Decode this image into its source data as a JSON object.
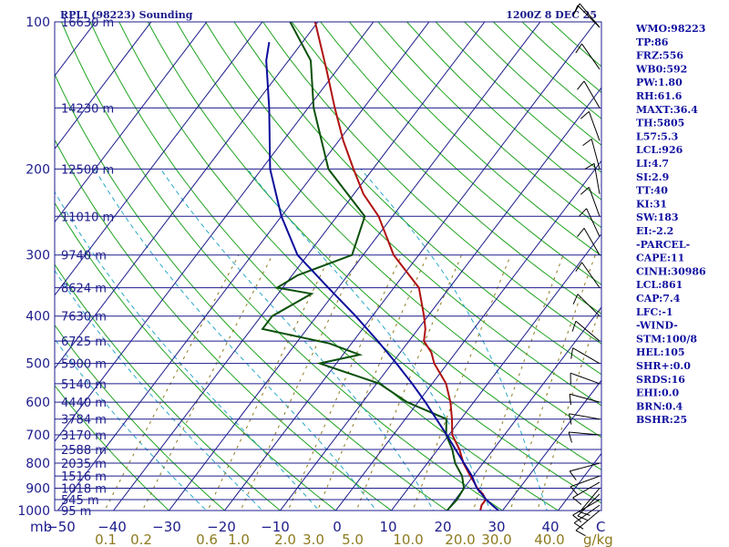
{
  "chart_data": {
    "type": "skew-t sounding",
    "title": "RPLI (98223) Sounding",
    "time_label": "1200Z  8 DEC 25",
    "pressure_axis_label": "mb",
    "pressure_ticks": [
      100,
      200,
      300,
      400,
      500,
      600,
      700,
      800,
      900,
      1000
    ],
    "pressure_range": [
      100,
      1000
    ],
    "height_labels": [
      {
        "p": 100,
        "label": "16630 m"
      },
      {
        "p": 150,
        "label": "14230 m"
      },
      {
        "p": 200,
        "label": "12500 m"
      },
      {
        "p": 250,
        "label": "11010 m"
      },
      {
        "p": 300,
        "label": "9740 m"
      },
      {
        "p": 350,
        "label": "8624 m"
      },
      {
        "p": 400,
        "label": "7630 m"
      },
      {
        "p": 450,
        "label": "6725 m"
      },
      {
        "p": 500,
        "label": "5900 m"
      },
      {
        "p": 550,
        "label": "5140 m"
      },
      {
        "p": 600,
        "label": "4440 m"
      },
      {
        "p": 650,
        "label": "3784 m"
      },
      {
        "p": 700,
        "label": "3170 m"
      },
      {
        "p": 750,
        "label": "2588 m"
      },
      {
        "p": 800,
        "label": "2035 m"
      },
      {
        "p": 850,
        "label": "1516 m"
      },
      {
        "p": 900,
        "label": "1018 m"
      },
      {
        "p": 950,
        "label": "545 m"
      },
      {
        "p": 1000,
        "label": "95 m"
      }
    ],
    "temperature_axis_label": "C",
    "temperature_ticks": [
      "−50",
      "−40",
      "−30",
      "−20",
      "−10",
      "0",
      "10",
      "20",
      "30",
      "40"
    ],
    "mixing_ratio_axis_label": "g/kg",
    "mixing_ratio_ticks": [
      "0.1",
      "0.2",
      "0.6",
      "1.0",
      "2.0",
      "3.0",
      "5.0",
      "10.0",
      "20.0",
      "30.0",
      "40.0"
    ],
    "series": [
      {
        "name": "temperature",
        "color": "#b01010",
        "points": [
          [
            1000,
            26
          ],
          [
            975,
            25.5
          ],
          [
            950,
            25.5
          ],
          [
            925,
            24.2
          ],
          [
            900,
            22.4
          ],
          [
            875,
            21
          ],
          [
            850,
            19.5
          ],
          [
            800,
            16.5
          ],
          [
            750,
            13.9
          ],
          [
            700,
            10.6
          ],
          [
            650,
            8.4
          ],
          [
            600,
            5.8
          ],
          [
            550,
            2.5
          ],
          [
            500,
            -2.4
          ],
          [
            475,
            -4.4
          ],
          [
            450,
            -7.3
          ],
          [
            425,
            -8.7
          ],
          [
            400,
            -10.7
          ],
          [
            350,
            -15.5
          ],
          [
            300,
            -24.5
          ],
          [
            250,
            -32.5
          ],
          [
            225,
            -38.3
          ],
          [
            200,
            -43.5
          ],
          [
            175,
            -49.2
          ],
          [
            150,
            -55.2
          ],
          [
            125,
            -62
          ],
          [
            100,
            -70.5
          ]
        ]
      },
      {
        "name": "dewpoint",
        "color": "#0a500a",
        "points": [
          [
            1000,
            20
          ],
          [
            950,
            20.3
          ],
          [
            900,
            20
          ],
          [
            850,
            18
          ],
          [
            800,
            15
          ],
          [
            750,
            12.6
          ],
          [
            700,
            9.5
          ],
          [
            650,
            7.4
          ],
          [
            600,
            -2
          ],
          [
            550,
            -9.5
          ],
          [
            500,
            -23
          ],
          [
            480,
            -17
          ],
          [
            455,
            -24
          ],
          [
            425,
            -38
          ],
          [
            400,
            -38
          ],
          [
            360,
            -34
          ],
          [
            350,
            -41
          ],
          [
            330,
            -39
          ],
          [
            300,
            -32
          ],
          [
            250,
            -35
          ],
          [
            200,
            -48
          ],
          [
            150,
            -59
          ],
          [
            120,
            -66
          ],
          [
            100,
            -75
          ]
        ]
      },
      {
        "name": "parcel",
        "color": "#0c0c9c",
        "points": [
          [
            1000,
            29.3
          ],
          [
            975,
            27.4
          ],
          [
            950,
            25.6
          ],
          [
            925,
            24
          ],
          [
            900,
            22.3
          ],
          [
            850,
            19.8
          ],
          [
            800,
            16.6
          ],
          [
            750,
            13.2
          ],
          [
            700,
            9.6
          ],
          [
            650,
            5.6
          ],
          [
            600,
            1.3
          ],
          [
            550,
            -3.6
          ],
          [
            500,
            -9.2
          ],
          [
            450,
            -15.6
          ],
          [
            400,
            -23
          ],
          [
            350,
            -31.8
          ],
          [
            300,
            -41.8
          ],
          [
            250,
            -50
          ],
          [
            200,
            -58.5
          ],
          [
            150,
            -67
          ],
          [
            120,
            -74
          ],
          [
            110,
            -76
          ]
        ]
      }
    ],
    "wind_barbs_present": true
  },
  "indices": [
    "WMO:98223",
    "TP:86",
    "FRZ:556",
    "WB0:592",
    "PW:1.80",
    "RH:61.6",
    "MAXT:36.4",
    "TH:5805",
    "L57:5.3",
    "LCL:926",
    "LI:4.7",
    "SI:2.9",
    "TT:40",
    "KI:31",
    "SW:183",
    "EI:-2.2",
    "-PARCEL-",
    "CAPE:11",
    "CINH:30986",
    "LCL:861",
    "CAP:7.4",
    "LFC:-1",
    "-WIND-",
    "STM:100/8",
    "HEL:105",
    "SHR+:0.0",
    "SRDS:16",
    "EHI:0.0",
    "BRN:0.4",
    "BSHR:25"
  ],
  "colors": {
    "isobar": "#1c1c8c",
    "isotherm": "#1c1c8c",
    "dry_adiabat": "#1fa31f",
    "moist_adiabat": "#2aa8c8",
    "mixing_ratio": "#8c7a1e",
    "text": "#1c1c8c"
  }
}
